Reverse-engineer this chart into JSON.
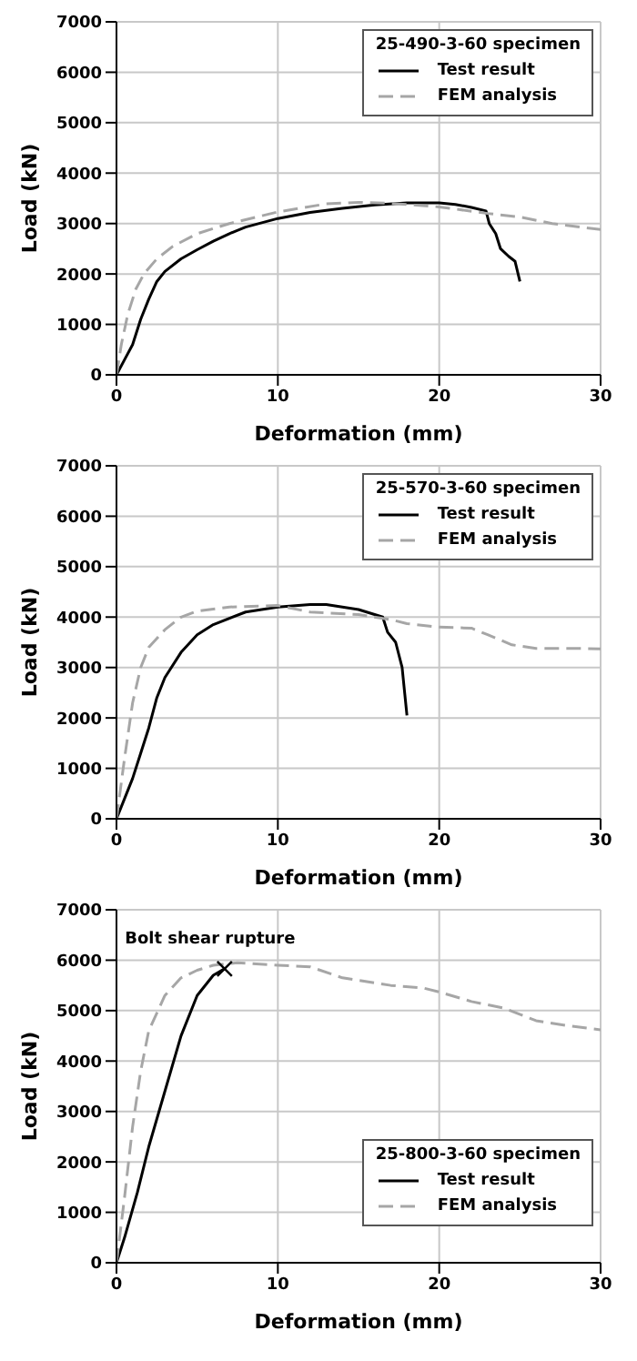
{
  "chart_data": [
    {
      "type": "line",
      "xlabel": "Deformation (mm)",
      "ylabel": "Load (kN)",
      "legend_title": "25-490-3-60 specimen",
      "legend": "top right",
      "grid": true,
      "xlim": [
        0,
        30
      ],
      "xticks": [
        0,
        10,
        20,
        30
      ],
      "ylim": [
        0,
        7000
      ],
      "yticks": [
        0,
        1000,
        2000,
        3000,
        4000,
        5000,
        6000,
        7000
      ],
      "series": [
        {
          "name": "Test result",
          "color": "#000000",
          "line_style": "solid",
          "x": [
            0,
            0.5,
            1,
            1.5,
            2,
            2.5,
            3,
            4,
            5,
            6,
            7,
            8,
            10,
            12,
            14,
            16,
            18,
            20,
            21,
            22,
            22.9,
            23.1,
            23.5,
            23.8,
            24.3,
            24.7,
            25
          ],
          "values": [
            0,
            300,
            600,
            1100,
            1500,
            1850,
            2050,
            2300,
            2480,
            2650,
            2800,
            2930,
            3100,
            3220,
            3300,
            3370,
            3410,
            3410,
            3380,
            3320,
            3250,
            3000,
            2800,
            2500,
            2350,
            2250,
            1850
          ]
        },
        {
          "name": "FEM analysis",
          "color": "#a6a6a6",
          "line_style": "dashed",
          "x": [
            0,
            0.3,
            0.7,
            1.2,
            1.7,
            2.5,
            3.5,
            5,
            7,
            10,
            13,
            15,
            17,
            20,
            23,
            25,
            27,
            30
          ],
          "values": [
            0,
            600,
            1200,
            1700,
            2000,
            2300,
            2550,
            2800,
            3000,
            3230,
            3390,
            3420,
            3400,
            3330,
            3200,
            3130,
            3000,
            2880
          ]
        }
      ]
    },
    {
      "type": "line",
      "xlabel": "Deformation (mm)",
      "ylabel": "Load (kN)",
      "legend_title": "25-570-3-60 specimen",
      "legend": "top right",
      "grid": true,
      "xlim": [
        0,
        30
      ],
      "xticks": [
        0,
        10,
        20,
        30
      ],
      "ylim": [
        0,
        7000
      ],
      "yticks": [
        0,
        1000,
        2000,
        3000,
        4000,
        5000,
        6000,
        7000
      ],
      "series": [
        {
          "name": "Test result",
          "color": "#000000",
          "line_style": "solid",
          "x": [
            0,
            0.5,
            1,
            1.5,
            2,
            2.5,
            3,
            4,
            5,
            6,
            8,
            10,
            12,
            13,
            15,
            16.5,
            16.8,
            17.3,
            17.7,
            18
          ],
          "values": [
            0,
            400,
            800,
            1300,
            1800,
            2400,
            2800,
            3300,
            3650,
            3850,
            4100,
            4200,
            4250,
            4250,
            4150,
            4000,
            3700,
            3500,
            3000,
            2050
          ]
        },
        {
          "name": "FEM analysis",
          "color": "#a6a6a6",
          "line_style": "dashed",
          "x": [
            0,
            0.5,
            1,
            1.5,
            2,
            3,
            4,
            5,
            7,
            10,
            12,
            15,
            17,
            18,
            20,
            22,
            23,
            24.5,
            26,
            28,
            30
          ],
          "values": [
            0,
            1200,
            2300,
            3000,
            3400,
            3750,
            4000,
            4120,
            4200,
            4230,
            4100,
            4050,
            3950,
            3870,
            3800,
            3780,
            3650,
            3450,
            3380,
            3380,
            3370
          ]
        }
      ]
    },
    {
      "type": "line",
      "xlabel": "Deformation (mm)",
      "ylabel": "Load (kN)",
      "legend_title": "25-800-3-60 specimen",
      "legend": "bottom right",
      "grid": true,
      "xlim": [
        0,
        30
      ],
      "xticks": [
        0,
        10,
        20,
        30
      ],
      "ylim": [
        0,
        7000
      ],
      "yticks": [
        0,
        1000,
        2000,
        3000,
        4000,
        5000,
        6000,
        7000
      ],
      "annotations": [
        {
          "text": "Bolt shear rupture",
          "x": 6.7,
          "y": 5830
        }
      ],
      "series": [
        {
          "name": "Test result",
          "color": "#000000",
          "line_style": "solid",
          "x": [
            0,
            0.5,
            1.3,
            2,
            3,
            4,
            5,
            6,
            6.7
          ],
          "values": [
            0,
            500,
            1400,
            2300,
            3400,
            4500,
            5300,
            5700,
            5830
          ]
        },
        {
          "name": "FEM analysis",
          "color": "#a6a6a6",
          "line_style": "dashed",
          "x": [
            0,
            0.5,
            1,
            1.5,
            2,
            3,
            4,
            5,
            6,
            7.5,
            10,
            12,
            14,
            17,
            19,
            20,
            22,
            24,
            26,
            28,
            30
          ],
          "values": [
            0,
            1300,
            2700,
            3800,
            4600,
            5300,
            5650,
            5800,
            5900,
            5950,
            5900,
            5870,
            5650,
            5500,
            5450,
            5370,
            5180,
            5050,
            4800,
            4700,
            4620
          ]
        }
      ]
    }
  ]
}
